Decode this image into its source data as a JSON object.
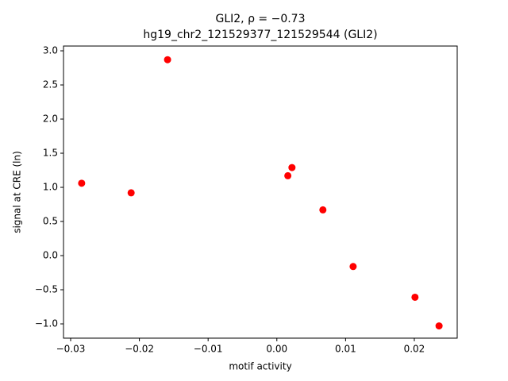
{
  "chart_data": {
    "type": "scatter",
    "title": "GLI2, ρ = −0.73",
    "subtitle": "hg19_chr2_121529377_121529544 (GLI2)",
    "x_label": "motif activity",
    "y_label": "signal at CRE (ln)",
    "series": [
      {
        "color": "#ff0000",
        "x": [
          -0.0284,
          -0.0212,
          -0.0159,
          0.0016,
          0.0022,
          0.0067,
          0.0111,
          0.0201,
          0.0236
        ],
        "values": [
          1.06,
          0.92,
          2.87,
          1.17,
          1.29,
          0.67,
          -0.16,
          -0.61,
          -1.03
        ]
      }
    ],
    "xlim": [
      -0.03104,
      0.02624
    ],
    "ylim": [
      -1.209,
      3.07
    ],
    "xticks": [
      {
        "value": -0.03,
        "label": "−0.03"
      },
      {
        "value": -0.02,
        "label": "−0.02"
      },
      {
        "value": -0.01,
        "label": "−0.01"
      },
      {
        "value": 0,
        "label": "0.00"
      },
      0.01,
      0.02
    ],
    "yticks": [
      {
        "value": -1,
        "label": "−1.0"
      },
      {
        "value": -0.5,
        "label": "−0.5"
      },
      {
        "value": 0,
        "label": "0.0"
      },
      0.5,
      {
        "value": 1,
        "label": "1.0"
      },
      1.5,
      {
        "value": 2,
        "label": "2.0"
      },
      2.5,
      {
        "value": 3,
        "label": "3.0"
      }
    ],
    "grid": false
  }
}
